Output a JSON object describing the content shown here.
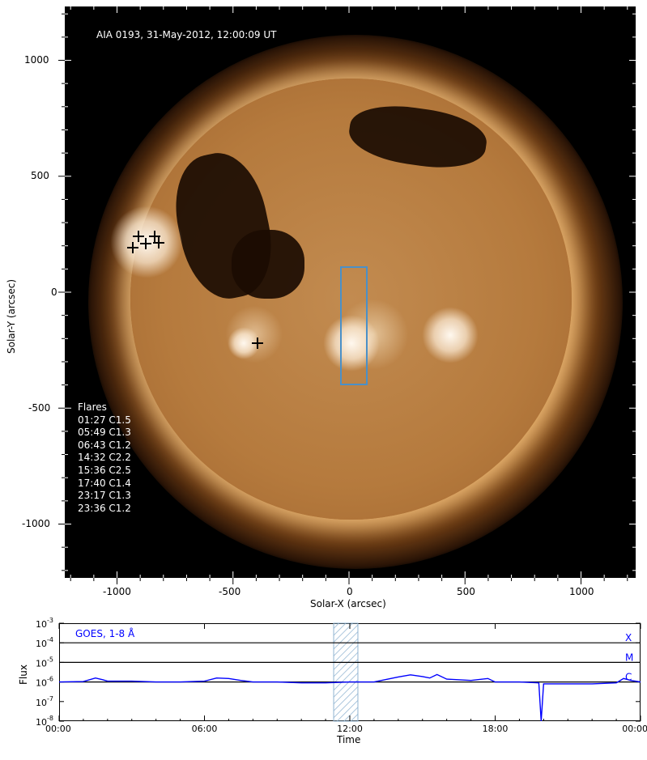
{
  "sun_image": {
    "title": "AIA 0193, 31-May-2012, 12:00:09 UT",
    "flares_heading": "Flares",
    "flares": [
      "01:27 C1.5",
      "05:49 C1.3",
      "06:43 C1.2",
      "14:32 C2.2",
      "15:36 C2.5",
      "17:40 C1.4",
      "23:17 C1.3",
      "23:36 C1.2"
    ],
    "xlabel": "Solar-X (arcsec)",
    "ylabel": "Solar-Y (arcsec)",
    "xticks": [
      "-1000",
      "-500",
      "0",
      "500",
      "1000"
    ],
    "yticks": [
      "1000",
      "500",
      "0",
      "-500",
      "-1000"
    ],
    "highlight_color": "#4a90c8"
  },
  "chart_data": {
    "type": "line",
    "title": "",
    "legend": "GOES, 1-8 Å",
    "xlabel": "Time",
    "ylabel": "Flux",
    "xticks": [
      "00:00",
      "06:00",
      "12:00",
      "18:00",
      "00:00"
    ],
    "yticks": [
      "10-8",
      "10-7",
      "10-6",
      "10-5",
      "10-4",
      "10-3"
    ],
    "ylim": [
      1e-08,
      0.001
    ],
    "yscale": "log",
    "class_labels": [
      "X",
      "M",
      "C"
    ],
    "highlight_window": [
      "11:20",
      "12:20"
    ],
    "series": [
      {
        "name": "GOES, 1-8 Å",
        "color": "#0000ff",
        "x": [
          0,
          1,
          1.5,
          1.8,
          2,
          3,
          4,
          5,
          6,
          6.5,
          7,
          7.5,
          8,
          9,
          10,
          11,
          12,
          13,
          14,
          14.5,
          15,
          15.3,
          15.6,
          16,
          17,
          17.7,
          18,
          19,
          19.8,
          19.9,
          20,
          21,
          22,
          23,
          23.3,
          23.6,
          24
        ],
        "y": [
          1e-06,
          1.05e-06,
          1.6e-06,
          1.3e-06,
          1.1e-06,
          1.1e-06,
          1e-06,
          1e-06,
          1.1e-06,
          1.6e-06,
          1.5e-06,
          1.2e-06,
          1e-06,
          1e-06,
          9e-07,
          9e-07,
          1e-06,
          1e-06,
          1.8e-06,
          2.3e-06,
          1.9e-06,
          1.6e-06,
          2.4e-06,
          1.4e-06,
          1.2e-06,
          1.5e-06,
          1e-06,
          1e-06,
          9e-07,
          1e-08,
          8e-07,
          8e-07,
          8e-07,
          9e-07,
          1.5e-06,
          1.2e-06,
          1e-06
        ]
      }
    ]
  }
}
